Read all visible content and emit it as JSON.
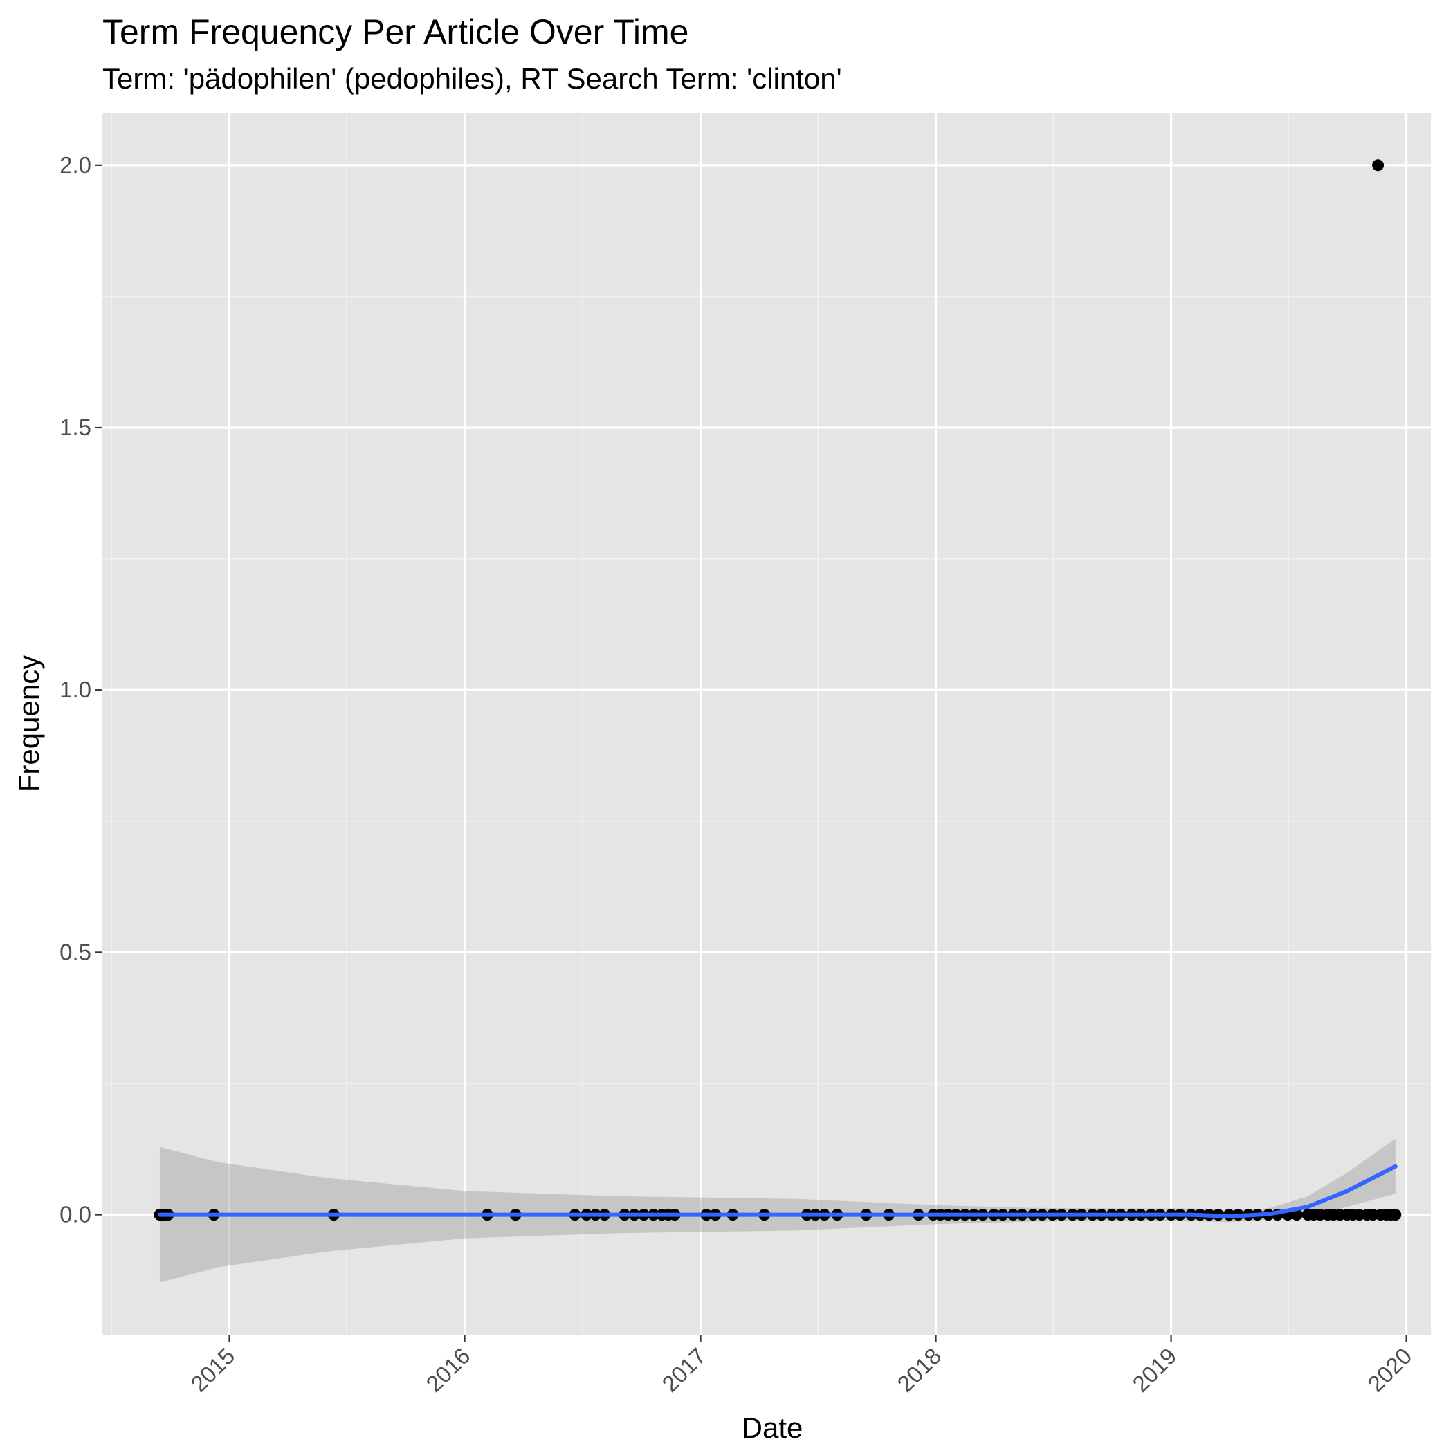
{
  "chart_data": {
    "type": "scatter",
    "title": "Term Frequency Per Article Over Time",
    "subtitle": "Term: 'pädophilen' (pedophiles), RT Search Term: 'clinton'",
    "xlabel": "Date",
    "ylabel": "Frequency",
    "x_ticks": [
      "2015",
      "2016",
      "2017",
      "2018",
      "2019",
      "2020"
    ],
    "y_ticks": [
      "0.0",
      "0.5",
      "1.0",
      "1.5",
      "2.0"
    ],
    "xlim": [
      "2014-06-18",
      "2020-02-08"
    ],
    "ylim": [
      -0.23,
      2.1
    ],
    "grid": true,
    "background": "#e5e5e5",
    "points": [
      {
        "x": "2014-09-15",
        "y": 0
      },
      {
        "x": "2014-09-18",
        "y": 0
      },
      {
        "x": "2014-09-22",
        "y": 0
      },
      {
        "x": "2014-09-28",
        "y": 0
      },
      {
        "x": "2014-12-08",
        "y": 0
      },
      {
        "x": "2015-06-12",
        "y": 0
      },
      {
        "x": "2016-02-05",
        "y": 0
      },
      {
        "x": "2016-03-20",
        "y": 0
      },
      {
        "x": "2016-06-20",
        "y": 0
      },
      {
        "x": "2016-07-08",
        "y": 0
      },
      {
        "x": "2016-07-22",
        "y": 0
      },
      {
        "x": "2016-08-05",
        "y": 0
      },
      {
        "x": "2016-09-05",
        "y": 0
      },
      {
        "x": "2016-09-20",
        "y": 0
      },
      {
        "x": "2016-10-05",
        "y": 0
      },
      {
        "x": "2016-10-20",
        "y": 0
      },
      {
        "x": "2016-11-02",
        "y": 0
      },
      {
        "x": "2016-11-12",
        "y": 0
      },
      {
        "x": "2016-11-22",
        "y": 0
      },
      {
        "x": "2017-01-10",
        "y": 0
      },
      {
        "x": "2017-01-24",
        "y": 0
      },
      {
        "x": "2017-02-20",
        "y": 0
      },
      {
        "x": "2017-04-10",
        "y": 0
      },
      {
        "x": "2017-06-15",
        "y": 0
      },
      {
        "x": "2017-06-28",
        "y": 0
      },
      {
        "x": "2017-07-12",
        "y": 0
      },
      {
        "x": "2017-08-01",
        "y": 0
      },
      {
        "x": "2017-09-15",
        "y": 0
      },
      {
        "x": "2017-10-20",
        "y": 0
      },
      {
        "x": "2017-12-05",
        "y": 0
      },
      {
        "x": "2017-12-28",
        "y": 0
      },
      {
        "x": "2018-01-08",
        "y": 0
      },
      {
        "x": "2018-01-20",
        "y": 0
      },
      {
        "x": "2018-02-01",
        "y": 0
      },
      {
        "x": "2018-02-15",
        "y": 0
      },
      {
        "x": "2018-03-01",
        "y": 0
      },
      {
        "x": "2018-03-15",
        "y": 0
      },
      {
        "x": "2018-04-01",
        "y": 0
      },
      {
        "x": "2018-04-15",
        "y": 0
      },
      {
        "x": "2018-05-01",
        "y": 0
      },
      {
        "x": "2018-05-15",
        "y": 0
      },
      {
        "x": "2018-06-01",
        "y": 0
      },
      {
        "x": "2018-06-15",
        "y": 0
      },
      {
        "x": "2018-07-01",
        "y": 0
      },
      {
        "x": "2018-07-15",
        "y": 0
      },
      {
        "x": "2018-08-01",
        "y": 0
      },
      {
        "x": "2018-08-15",
        "y": 0
      },
      {
        "x": "2018-09-01",
        "y": 0
      },
      {
        "x": "2018-09-15",
        "y": 0
      },
      {
        "x": "2018-10-01",
        "y": 0
      },
      {
        "x": "2018-10-15",
        "y": 0
      },
      {
        "x": "2018-11-01",
        "y": 0
      },
      {
        "x": "2018-11-15",
        "y": 0
      },
      {
        "x": "2018-12-01",
        "y": 0
      },
      {
        "x": "2018-12-15",
        "y": 0
      },
      {
        "x": "2019-01-01",
        "y": 0
      },
      {
        "x": "2019-01-15",
        "y": 0
      },
      {
        "x": "2019-02-01",
        "y": 0
      },
      {
        "x": "2019-02-15",
        "y": 0
      },
      {
        "x": "2019-03-01",
        "y": 0
      },
      {
        "x": "2019-03-15",
        "y": 0
      },
      {
        "x": "2019-04-01",
        "y": 0
      },
      {
        "x": "2019-04-15",
        "y": 0
      },
      {
        "x": "2019-05-01",
        "y": 0
      },
      {
        "x": "2019-05-15",
        "y": 0
      },
      {
        "x": "2019-06-01",
        "y": 0
      },
      {
        "x": "2019-06-15",
        "y": 0
      },
      {
        "x": "2019-07-01",
        "y": 0
      },
      {
        "x": "2019-07-15",
        "y": 0
      },
      {
        "x": "2019-08-01",
        "y": 0
      },
      {
        "x": "2019-08-10",
        "y": 0
      },
      {
        "x": "2019-08-20",
        "y": 0
      },
      {
        "x": "2019-09-01",
        "y": 0
      },
      {
        "x": "2019-09-10",
        "y": 0
      },
      {
        "x": "2019-09-20",
        "y": 0
      },
      {
        "x": "2019-10-01",
        "y": 0
      },
      {
        "x": "2019-10-10",
        "y": 0
      },
      {
        "x": "2019-10-20",
        "y": 0
      },
      {
        "x": "2019-11-01",
        "y": 0
      },
      {
        "x": "2019-11-10",
        "y": 0
      },
      {
        "x": "2019-11-18",
        "y": 2
      },
      {
        "x": "2019-11-22",
        "y": 0
      },
      {
        "x": "2019-12-01",
        "y": 0
      },
      {
        "x": "2019-12-08",
        "y": 0
      },
      {
        "x": "2019-12-15",
        "y": 0
      }
    ],
    "smooth": {
      "color": "#3366ff",
      "band_color": "#999999",
      "points": [
        {
          "x": "2014-09-15",
          "y": 0,
          "ymin": -0.129,
          "ymax": 0.129
        },
        {
          "x": "2014-12-15",
          "y": 0,
          "ymin": -0.1,
          "ymax": 0.1
        },
        {
          "x": "2015-06-01",
          "y": 0,
          "ymin": -0.07,
          "ymax": 0.07
        },
        {
          "x": "2016-01-01",
          "y": 0,
          "ymin": -0.045,
          "ymax": 0.045
        },
        {
          "x": "2016-09-01",
          "y": 0,
          "ymin": -0.035,
          "ymax": 0.035
        },
        {
          "x": "2017-06-01",
          "y": 0,
          "ymin": -0.03,
          "ymax": 0.03
        },
        {
          "x": "2018-01-01",
          "y": 0,
          "ymin": -0.018,
          "ymax": 0.018
        },
        {
          "x": "2018-06-01",
          "y": 0,
          "ymin": -0.013,
          "ymax": 0.013
        },
        {
          "x": "2018-11-01",
          "y": 0,
          "ymin": -0.012,
          "ymax": 0.012
        },
        {
          "x": "2019-02-01",
          "y": 0,
          "ymin": -0.012,
          "ymax": 0.012
        },
        {
          "x": "2019-04-01",
          "y": -0.003,
          "ymin": -0.014,
          "ymax": 0.008
        },
        {
          "x": "2019-06-01",
          "y": 0.001,
          "ymin": -0.009,
          "ymax": 0.012
        },
        {
          "x": "2019-08-01",
          "y": 0.015,
          "ymin": -0.002,
          "ymax": 0.035
        },
        {
          "x": "2019-10-01",
          "y": 0.045,
          "ymin": 0.015,
          "ymax": 0.08
        },
        {
          "x": "2019-12-15",
          "y": 0.092,
          "ymin": 0.04,
          "ymax": 0.145
        }
      ]
    }
  }
}
